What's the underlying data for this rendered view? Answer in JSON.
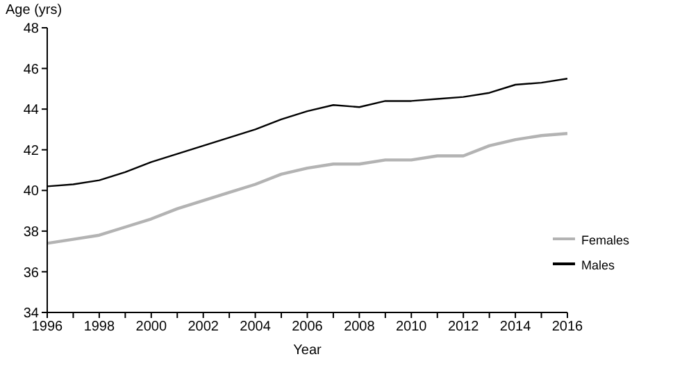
{
  "chart_data": {
    "type": "line",
    "ylabel": "Age (yrs)",
    "xlabel": "Year",
    "x": [
      1996,
      1997,
      1998,
      1999,
      2000,
      2001,
      2002,
      2003,
      2004,
      2005,
      2006,
      2007,
      2008,
      2009,
      2010,
      2011,
      2012,
      2013,
      2014,
      2015,
      2016
    ],
    "series": [
      {
        "name": "Males",
        "color": "#000000",
        "values": [
          40.2,
          40.3,
          40.5,
          40.9,
          41.4,
          41.8,
          42.2,
          42.6,
          43.0,
          43.5,
          43.9,
          44.2,
          44.1,
          44.4,
          44.4,
          44.5,
          44.6,
          44.8,
          45.2,
          45.3,
          45.5
        ]
      },
      {
        "name": "Females",
        "color": "#b3b3b3",
        "values": [
          37.4,
          37.6,
          37.8,
          38.2,
          38.6,
          39.1,
          39.5,
          39.9,
          40.3,
          40.8,
          41.1,
          41.3,
          41.3,
          41.5,
          41.5,
          41.7,
          41.7,
          42.2,
          42.5,
          42.7,
          42.8
        ]
      }
    ],
    "xlim": [
      1996,
      2016
    ],
    "xticks": [
      1996,
      {
        "value": 1997,
        "label": null
      },
      1998,
      {
        "value": 1999,
        "label": null
      },
      2000,
      {
        "value": 2001,
        "label": null
      },
      2002,
      {
        "value": 2003,
        "label": null
      },
      2004,
      {
        "value": 2005,
        "label": null
      },
      2006,
      {
        "value": 2007,
        "label": null
      },
      2008,
      {
        "value": 2009,
        "label": null
      },
      2010,
      {
        "value": 2011,
        "label": null
      },
      2012,
      {
        "value": 2013,
        "label": null
      },
      2014,
      {
        "value": 2015,
        "label": null
      },
      2016
    ],
    "ylim": [
      34,
      48
    ],
    "yticks": [
      34,
      36,
      38,
      40,
      42,
      44,
      46,
      48
    ],
    "grid": false,
    "legend": "bottom right",
    "marker": "none",
    "line_style": "solid"
  }
}
